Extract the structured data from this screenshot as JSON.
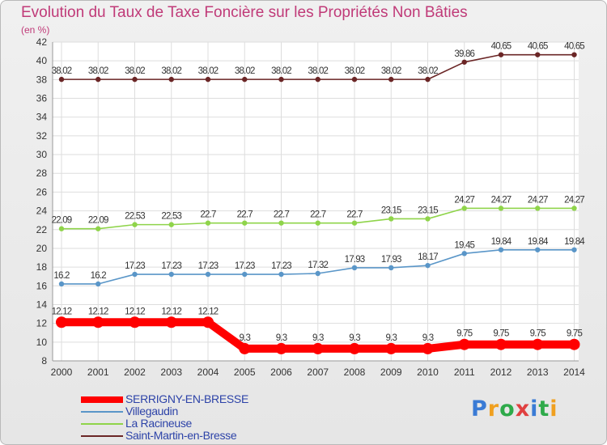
{
  "header": {
    "title": "Evolution du Taux de Taxe Foncière sur les Propriétés Non Bâties",
    "unit": "(en %)"
  },
  "logo": {
    "text": "Proxiti",
    "letter_colors": [
      "#3a7bd5",
      "#f0a020",
      "#2eaa4a",
      "#e04040",
      "#3a7bd5",
      "#2eaa4a",
      "#f0a020"
    ]
  },
  "chart_data": {
    "type": "line",
    "title": "Evolution du Taux de Taxe Foncière sur les Propriétés Non Bâties",
    "ylabel": "(en %)",
    "xlabel": "",
    "x": [
      2000,
      2001,
      2002,
      2003,
      2004,
      2005,
      2006,
      2007,
      2008,
      2009,
      2010,
      2011,
      2012,
      2013,
      2014
    ],
    "ylim": [
      8,
      42
    ],
    "yticks": [
      8,
      10,
      12,
      14,
      16,
      18,
      20,
      22,
      24,
      26,
      28,
      30,
      32,
      34,
      36,
      38,
      40,
      42
    ],
    "grid": true,
    "series": [
      {
        "name": "Saint-Martin-en-Bresse",
        "color": "#6b2626",
        "values": [
          38.02,
          38.02,
          38.02,
          38.02,
          38.02,
          38.02,
          38.02,
          38.02,
          38.02,
          38.02,
          38.02,
          39.86,
          40.65,
          40.65,
          40.65
        ],
        "labels": [
          "38.02",
          "38.02",
          "38.02",
          "38.02",
          "38.02",
          "38.02",
          "38.02",
          "38.02",
          "38.02",
          "38.02",
          "38.02",
          "39.86",
          "40.65",
          "40.65",
          "40.65"
        ]
      },
      {
        "name": "La Racineuse",
        "color": "#8fd44a",
        "values": [
          22.09,
          22.09,
          22.53,
          22.53,
          22.7,
          22.7,
          22.7,
          22.7,
          22.7,
          23.15,
          23.15,
          24.27,
          24.27,
          24.27,
          24.27
        ],
        "labels": [
          "22.09",
          "22.09",
          "22.53",
          "22.53",
          "22.7",
          "22.7",
          "22.7",
          "22.7",
          "22.7",
          "23.15",
          "23.15",
          "24.27",
          "24.27",
          "24.27",
          "24.27"
        ]
      },
      {
        "name": "Villegaudin",
        "color": "#5a96c8",
        "values": [
          16.2,
          16.2,
          17.23,
          17.23,
          17.23,
          17.23,
          17.23,
          17.32,
          17.93,
          17.93,
          18.17,
          19.45,
          19.84,
          19.84,
          19.84
        ],
        "labels": [
          "16.2",
          "16.2",
          "17.23",
          "17.23",
          "17.23",
          "17.23",
          "17.23",
          "17.32",
          "17.93",
          "17.93",
          "18.17",
          "19.45",
          "19.84",
          "19.84",
          "19.84"
        ]
      },
      {
        "name": "SERRIGNY-EN-BRESSE",
        "color": "#ff0000",
        "values": [
          12.12,
          12.12,
          12.12,
          12.12,
          12.12,
          9.3,
          9.3,
          9.3,
          9.3,
          9.3,
          9.3,
          9.75,
          9.75,
          9.75,
          9.75
        ],
        "labels": [
          "12.12",
          "12.12",
          "12.12",
          "12.12",
          "12.12",
          "9.3",
          "9.3",
          "9.3",
          "9.3",
          "9.3",
          "9.3",
          "9.75",
          "9.75",
          "9.75",
          "9.75"
        ]
      }
    ],
    "legend": {
      "placement": "bottom-left",
      "order": [
        "SERRIGNY-EN-BRESSE",
        "Villegaudin",
        "La Racineuse",
        "Saint-Martin-en-Bresse"
      ]
    }
  }
}
